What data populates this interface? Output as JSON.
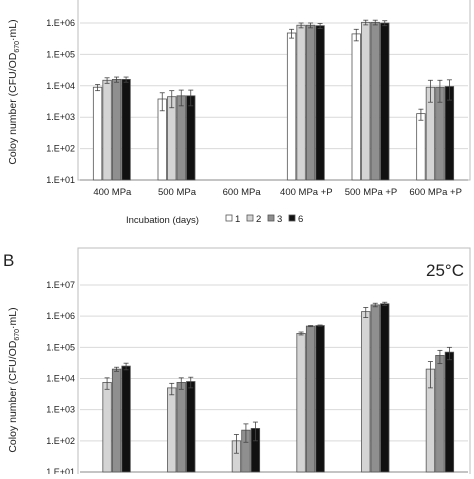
{
  "colors": [
    "#ffffff",
    "#d4d4d4",
    "#8f8f8f",
    "#111111"
  ],
  "chart_data": [
    {
      "type": "bar",
      "panel_label": "",
      "temperature_label": "",
      "ylabel_parts": [
        "Coloy number (CFU/OD",
        "670",
        "·mL)"
      ],
      "scale": "log",
      "ylim": [
        "1.E+01",
        "1.E+06"
      ],
      "ytick_labels": [
        "1.E+01",
        "1.E+02",
        "1.E+03",
        "1.E+04",
        "1.E+05",
        "1.E+06"
      ],
      "categories": [
        "400 MPa",
        "500 MPa",
        "600 MPa",
        "400 MPa +P",
        "500 MPa +P",
        "600 MPa +P"
      ],
      "legend_title": "Incubation (days)",
      "series": [
        {
          "name": "1",
          "values": [
            9000,
            3800,
            null,
            480000,
            450000,
            1300
          ],
          "errors": [
            2000,
            2200,
            null,
            150000,
            180000,
            500
          ]
        },
        {
          "name": "2",
          "values": [
            15000,
            4500,
            null,
            850000,
            1050000,
            9000
          ],
          "errors": [
            3000,
            2500,
            null,
            150000,
            180000,
            6000
          ]
        },
        {
          "name": "3",
          "values": [
            16000,
            4800,
            null,
            850000,
            1050000,
            9000
          ],
          "errors": [
            3000,
            2500,
            null,
            150000,
            180000,
            6000
          ]
        },
        {
          "name": "6",
          "values": [
            16000,
            4800,
            null,
            820000,
            1000000,
            9500
          ],
          "errors": [
            3000,
            2500,
            null,
            150000,
            180000,
            6000
          ]
        }
      ]
    },
    {
      "type": "bar",
      "panel_label": "B",
      "temperature_label": "25°C",
      "ylabel_parts": [
        "Coloy number (CFU/OD",
        "670",
        "·mL)"
      ],
      "scale": "log",
      "ylim": [
        "1.E+01",
        "1.E+07"
      ],
      "ytick_labels": [
        "1.E+01",
        "1.E+02",
        "1.E+03",
        "1.E+04",
        "1.E+05",
        "1.E+06",
        "1.E+07"
      ],
      "series": [
        {
          "name": "1",
          "values": [
            null,
            null,
            null,
            null,
            null,
            null
          ],
          "errors": [
            null,
            null,
            null,
            null,
            null,
            null
          ]
        },
        {
          "name": "2",
          "values": [
            7500,
            5000,
            100,
            280000,
            1400000,
            20000
          ],
          "errors": [
            3000,
            2000,
            60,
            30000,
            500000,
            15000
          ]
        },
        {
          "name": "3",
          "values": [
            20000,
            7500,
            220,
            480000,
            2300000,
            55000
          ],
          "errors": [
            3000,
            3000,
            130,
            20000,
            300000,
            25000
          ]
        },
        {
          "name": "6",
          "values": [
            25000,
            8000,
            250,
            500000,
            2500000,
            70000
          ],
          "errors": [
            6000,
            3000,
            150,
            20000,
            300000,
            30000
          ]
        }
      ]
    }
  ]
}
